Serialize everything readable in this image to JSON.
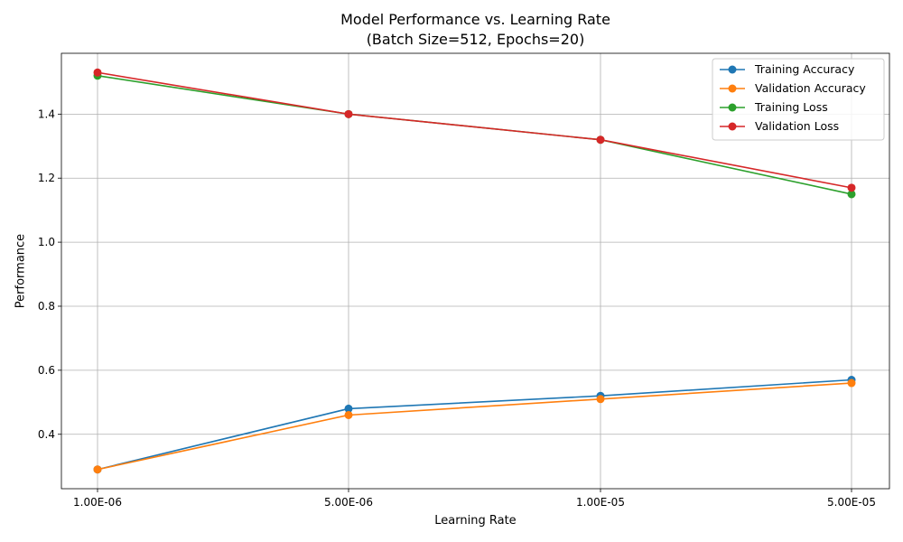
{
  "chart_data": {
    "type": "line",
    "title": "Model Performance vs. Learning Rate",
    "subtitle": "(Batch Size=512, Epochs=20)",
    "xlabel": "Learning Rate",
    "ylabel": "Performance",
    "categories": [
      "1.00E-06",
      "5.00E-06",
      "1.00E-05",
      "5.00E-05"
    ],
    "ylim": [
      0.23,
      1.59
    ],
    "yticks": [
      0.4,
      0.6,
      0.8,
      1.0,
      1.2,
      1.4
    ],
    "ytick_labels": [
      "0.4",
      "0.6",
      "0.8",
      "1.0",
      "1.2",
      "1.4"
    ],
    "grid": true,
    "legend_position": "top-right",
    "series": [
      {
        "name": "Training Accuracy",
        "color": "#1f77b4",
        "values": [
          0.29,
          0.48,
          0.52,
          0.57
        ]
      },
      {
        "name": "Validation Accuracy",
        "color": "#ff7f0e",
        "values": [
          0.29,
          0.46,
          0.51,
          0.56
        ]
      },
      {
        "name": "Training Loss",
        "color": "#2ca02c",
        "values": [
          1.52,
          1.4,
          1.32,
          1.15
        ]
      },
      {
        "name": "Validation Loss",
        "color": "#d62728",
        "values": [
          1.53,
          1.4,
          1.32,
          1.17
        ]
      }
    ]
  }
}
